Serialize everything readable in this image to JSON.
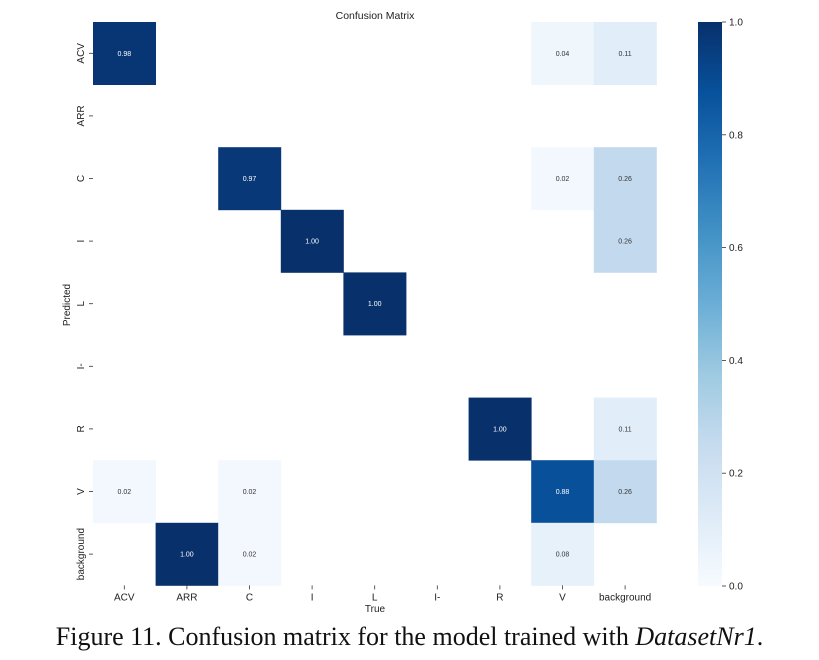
{
  "chart_data": {
    "type": "heatmap",
    "title": "Confusion Matrix",
    "xlabel": "True",
    "ylabel": "Predicted",
    "x_categories": [
      "ACV",
      "ARR",
      "C",
      "I",
      "L",
      "I-",
      "R",
      "V",
      "background"
    ],
    "y_categories": [
      "ACV",
      "ARR",
      "C",
      "I",
      "L",
      "I-",
      "R",
      "V",
      "background"
    ],
    "value_range": [
      0.0,
      1.0
    ],
    "colorbar_ticks": [
      "0.0",
      "0.2",
      "0.4",
      "0.6",
      "0.8",
      "1.0"
    ],
    "colormap": [
      "#f7fbff",
      "#deebf7",
      "#c6dbef",
      "#9ecae1",
      "#6baed6",
      "#4292c6",
      "#2171b5",
      "#08519c",
      "#08306b"
    ],
    "cells": [
      {
        "row": 0,
        "col": 0,
        "value": 0.98,
        "label": "0.98"
      },
      {
        "row": 0,
        "col": 7,
        "value": 0.04,
        "label": "0.04"
      },
      {
        "row": 0,
        "col": 8,
        "value": 0.11,
        "label": "0.11"
      },
      {
        "row": 2,
        "col": 2,
        "value": 0.97,
        "label": "0.97"
      },
      {
        "row": 2,
        "col": 7,
        "value": 0.02,
        "label": "0.02"
      },
      {
        "row": 2,
        "col": 8,
        "value": 0.26,
        "label": "0.26"
      },
      {
        "row": 3,
        "col": 3,
        "value": 1.0,
        "label": "1.00"
      },
      {
        "row": 3,
        "col": 8,
        "value": 0.26,
        "label": "0.26"
      },
      {
        "row": 4,
        "col": 4,
        "value": 1.0,
        "label": "1.00"
      },
      {
        "row": 6,
        "col": 6,
        "value": 1.0,
        "label": "1.00"
      },
      {
        "row": 6,
        "col": 8,
        "value": 0.11,
        "label": "0.11"
      },
      {
        "row": 7,
        "col": 0,
        "value": 0.02,
        "label": "0.02"
      },
      {
        "row": 7,
        "col": 2,
        "value": 0.02,
        "label": "0.02"
      },
      {
        "row": 7,
        "col": 7,
        "value": 0.88,
        "label": "0.88"
      },
      {
        "row": 7,
        "col": 8,
        "value": 0.26,
        "label": "0.26"
      },
      {
        "row": 8,
        "col": 1,
        "value": 1.0,
        "label": "1.00"
      },
      {
        "row": 8,
        "col": 2,
        "value": 0.02,
        "label": "0.02"
      },
      {
        "row": 8,
        "col": 7,
        "value": 0.08,
        "label": "0.08"
      }
    ]
  },
  "caption": {
    "prefix": "Figure 11. Confusion matrix for the model trained with ",
    "dataset": "DatasetNr1",
    "suffix": "."
  }
}
